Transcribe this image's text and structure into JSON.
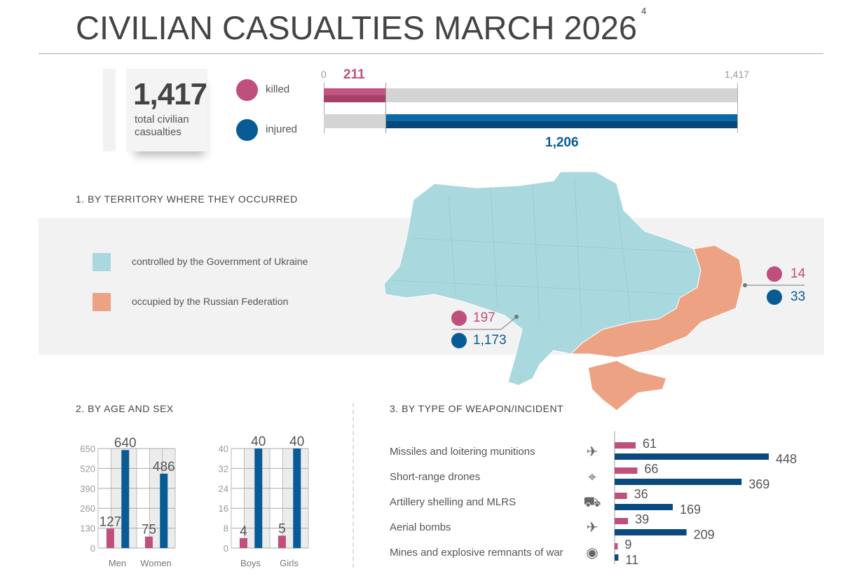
{
  "title": "CIVILIAN CASUALTIES MARCH 2026",
  "title_footnote": "4",
  "colors": {
    "killed": "#bf4f7d",
    "injured": "#085b95",
    "government": "#a9d8df",
    "occupied": "#eda283"
  },
  "summary": {
    "total": "1,417",
    "total_label_1": "total civilian",
    "total_label_2": "casualties",
    "legend_killed": "killed",
    "legend_injured": "injured",
    "axis_min": "0",
    "axis_max": "1,417",
    "killed_value": "211",
    "injured_value": "1,206",
    "killed": 211,
    "injured": 1206,
    "max": 1417
  },
  "territory": {
    "heading": "1. BY TERRITORY WHERE THEY OCCURRED",
    "legend_government": "controlled by the Government of Ukraine",
    "legend_occupied": "occupied by the Russian Federation",
    "government_killed": "197",
    "government_injured": "1,173",
    "occupied_killed": "14",
    "occupied_injured": "33"
  },
  "chart_data": [
    {
      "type": "bar",
      "title": "2. BY AGE AND SEX",
      "categories": [
        "Men",
        "Women"
      ],
      "ylim": [
        0,
        650
      ],
      "yticks": [
        "0",
        "130",
        "260",
        "390",
        "520",
        "650"
      ],
      "series": [
        {
          "name": "killed",
          "values": [
            127,
            75
          ],
          "labels": [
            "127",
            "75"
          ]
        },
        {
          "name": "injured",
          "values": [
            640,
            486
          ],
          "labels": [
            "640",
            "486"
          ]
        }
      ]
    },
    {
      "type": "bar",
      "categories": [
        "Boys",
        "Girls"
      ],
      "ylim": [
        0,
        40
      ],
      "yticks": [
        "0",
        "8",
        "16",
        "24",
        "32",
        "40"
      ],
      "series": [
        {
          "name": "killed",
          "values": [
            4,
            5
          ],
          "labels": [
            "4",
            "5"
          ]
        },
        {
          "name": "injured",
          "values": [
            40,
            40
          ],
          "labels": [
            "40",
            "40"
          ]
        }
      ]
    },
    {
      "type": "bar",
      "orientation": "horizontal",
      "title": "3. BY TYPE OF WEAPON/INCIDENT",
      "categories": [
        "Missiles and loitering munitions",
        "Short-range drones",
        "Artillery shelling and MLRS",
        "Aerial bombs",
        "Mines and explosive remnants of war"
      ],
      "icons": [
        "missile-icon",
        "drone-icon",
        "mlrs-truck-icon",
        "jet-icon",
        "landmine-icon"
      ],
      "xlim": [
        0,
        448
      ],
      "series": [
        {
          "name": "killed",
          "values": [
            61,
            66,
            36,
            39,
            9
          ],
          "labels": [
            "61",
            "66",
            "36",
            "39",
            "9"
          ]
        },
        {
          "name": "injured",
          "values": [
            448,
            369,
            169,
            209,
            11
          ],
          "labels": [
            "448",
            "369",
            "169",
            "209",
            "11"
          ]
        }
      ]
    }
  ]
}
